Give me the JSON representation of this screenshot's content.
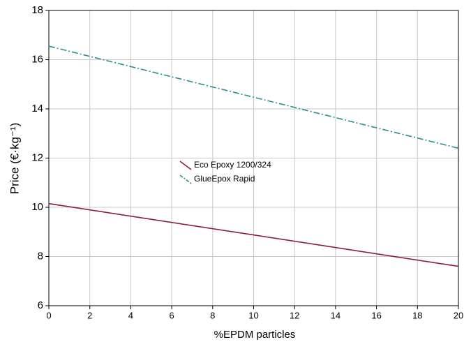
{
  "chart_data": {
    "type": "line",
    "xlabel": "%EPDM particles",
    "ylabel": "Price (€·kg⁻¹)",
    "x": [
      0,
      20
    ],
    "series": [
      {
        "name": "Eco Epoxy 1200/324",
        "color": "#8b1c3c",
        "linestyle": "solid",
        "values": [
          10.15,
          7.6
        ]
      },
      {
        "name": "GlueEpox Rapid",
        "color": "#2b8c8c",
        "linestyle": "dashdot",
        "values": [
          16.55,
          12.4
        ]
      }
    ],
    "xlim": [
      0,
      20
    ],
    "xticks": [
      0,
      2,
      4,
      6,
      8,
      10,
      12,
      14,
      16,
      18,
      20
    ],
    "ylim": [
      6,
      18
    ],
    "yticks": [
      6,
      8,
      10,
      12,
      14,
      16,
      18
    ],
    "grid": true,
    "legend": "center"
  }
}
